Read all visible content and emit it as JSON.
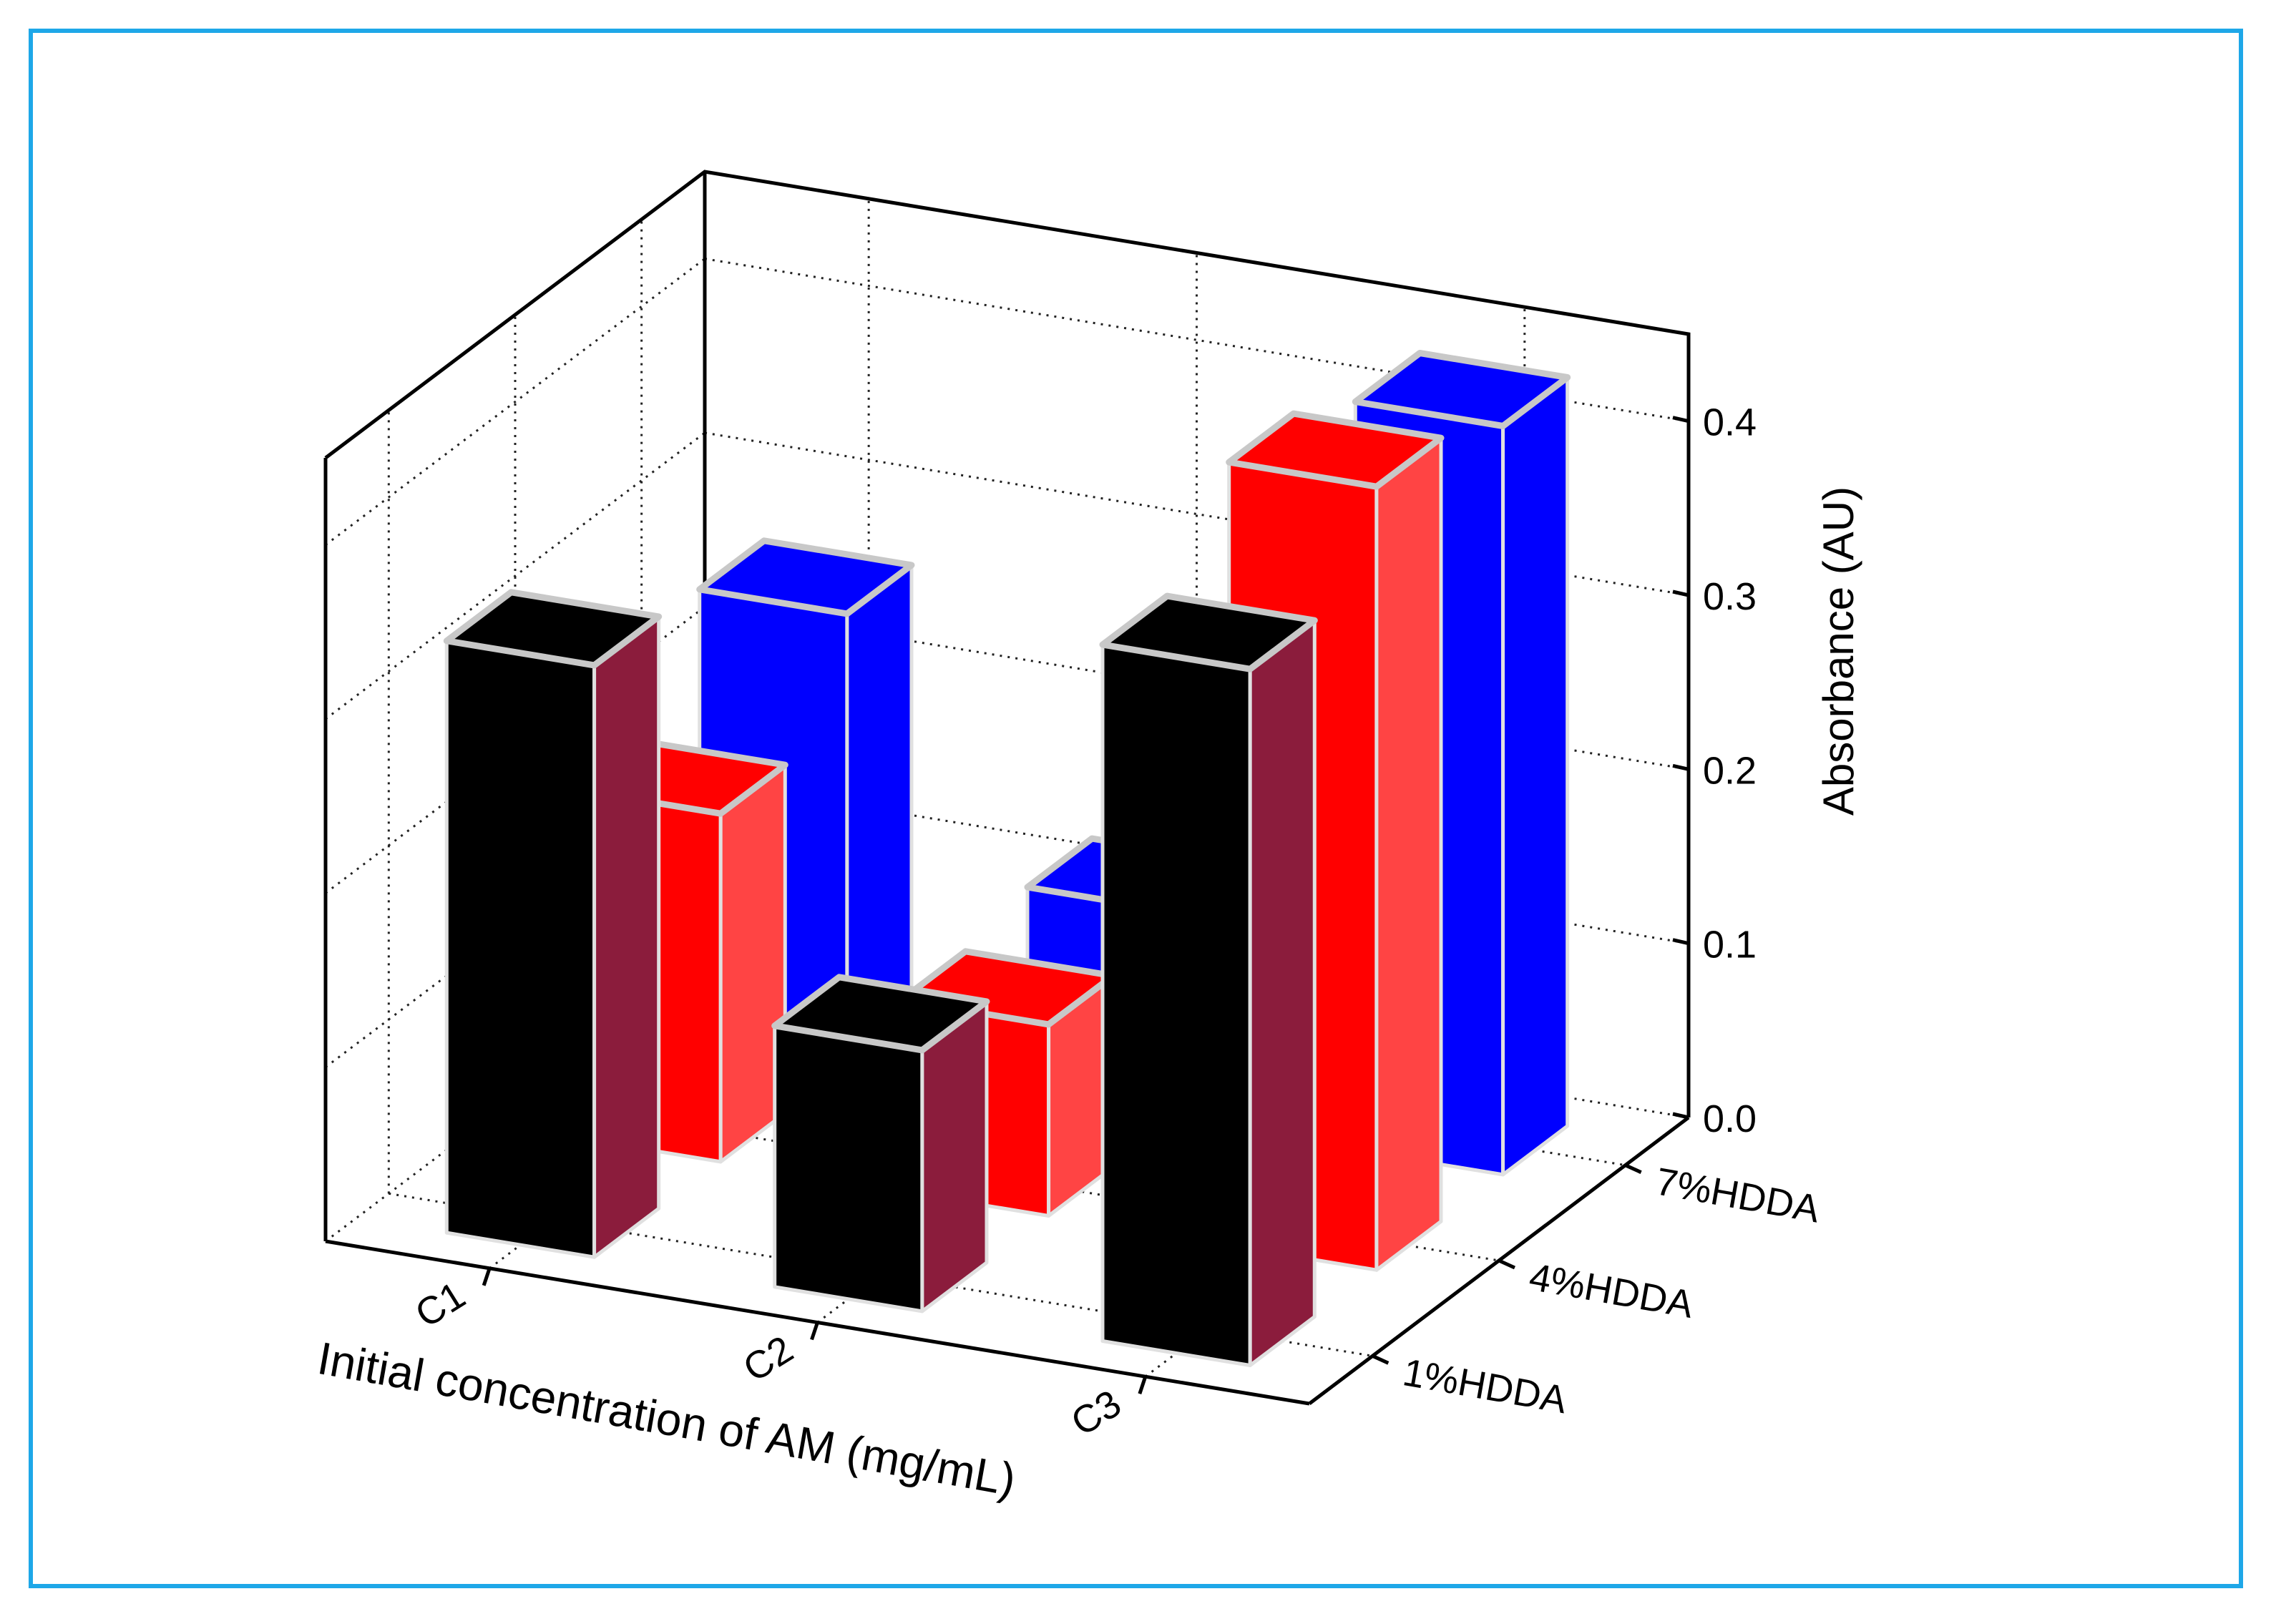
{
  "chart_data": {
    "type": "bar",
    "title": "",
    "xlabel": "Initial concentration of AM (mg/mL)",
    "ylabel": "Absorbance (AU)",
    "categories": [
      "C1",
      "C2",
      "C3"
    ],
    "depth_categories": [
      "1%HDDA",
      "4%HDDA",
      "7%HDDA"
    ],
    "ylim": [
      0.0,
      0.45
    ],
    "yticks": [
      "0.0",
      "0.1",
      "0.2",
      "0.3",
      "0.4"
    ],
    "grid": true,
    "series": [
      {
        "name": "1%HDDA",
        "color": "#000000",
        "side_color": "#8b1c3c",
        "values": [
          0.34,
          0.15,
          0.4
        ]
      },
      {
        "name": "4%HDDA",
        "color": "#ff0000",
        "side_color": "#ff4444",
        "values": [
          0.2,
          0.11,
          0.45
        ]
      },
      {
        "name": "7%HDDA",
        "color": "#0000ff",
        "side_color": "#0000ff",
        "values": [
          0.26,
          0.12,
          0.43
        ]
      }
    ]
  }
}
